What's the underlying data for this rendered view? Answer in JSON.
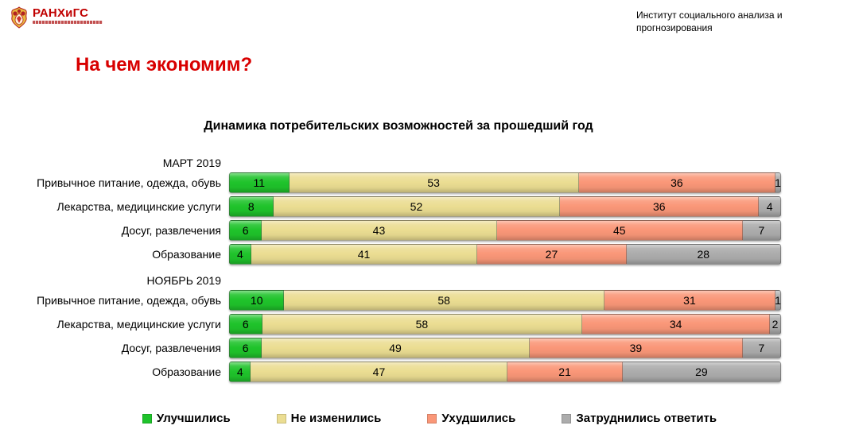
{
  "header": {
    "logo_text": "РАНХиГС",
    "institute": "Институт социального анализа и\nпрогнозирования"
  },
  "page_title": "На чем экономим?",
  "chart_data": {
    "type": "bar",
    "stacked": true,
    "orientation": "horizontal",
    "title": "Динамика потребительских возможностей за прошедший год",
    "xlim": [
      0,
      100
    ],
    "value_labels": "inside",
    "legend_position": "bottom",
    "series_names": [
      "Улучшились",
      "Не изменились",
      "Ухудшились",
      "Затруднились ответить"
    ],
    "series_colors": [
      "#1fc32b",
      "#ebdd92",
      "#fa9778",
      "#acacac"
    ],
    "groups": [
      {
        "label": "МАРТ 2019",
        "rows": [
          {
            "category": "Привычное питание, одежда, обувь",
            "values": [
              11,
              53,
              36,
              1
            ]
          },
          {
            "category": "Лекарства, медицинские услуги",
            "values": [
              8,
              52,
              36,
              4
            ]
          },
          {
            "category": "Досуг, развлечения",
            "values": [
              6,
              43,
              45,
              7
            ]
          },
          {
            "category": "Образование",
            "values": [
              4,
              41,
              27,
              28
            ]
          }
        ]
      },
      {
        "label": "НОЯБРЬ 2019",
        "rows": [
          {
            "category": "Привычное питание, одежда, обувь",
            "values": [
              10,
              58,
              31,
              1
            ]
          },
          {
            "category": "Лекарства, медицинские услуги",
            "values": [
              6,
              58,
              34,
              2
            ]
          },
          {
            "category": "Досуг, развлечения",
            "values": [
              6,
              49,
              39,
              7
            ]
          },
          {
            "category": "Образование",
            "values": [
              4,
              47,
              21,
              29
            ]
          }
        ]
      }
    ]
  }
}
